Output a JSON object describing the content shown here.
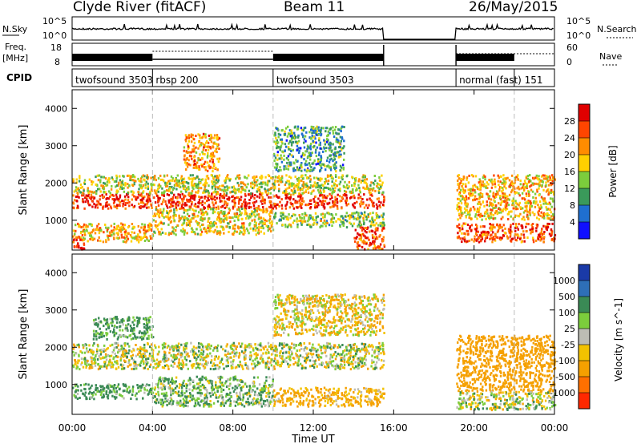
{
  "header": {
    "station": "Clyde River (fitACF)",
    "beam": "Beam 11",
    "date": "26/May/2015"
  },
  "strips": {
    "nsky_label": "N.Sky",
    "nsky_ticks": [
      "10^5",
      "10^0"
    ],
    "nsearch_label": "N.Search",
    "nsearch_ticks": [
      "10^5",
      "10^0"
    ],
    "freq_label": "Freq.",
    "freq_unit": "[MHz]",
    "freq_ticks": [
      "18",
      "8"
    ],
    "nave_label": "Nave",
    "nave_ticks": [
      "60",
      "0"
    ],
    "cpid_label": "CPID"
  },
  "cpid_segments": [
    {
      "label": "twofsound 3503",
      "start_hour": 0,
      "end_hour": 4
    },
    {
      "label": "rbsp 200",
      "start_hour": 4,
      "end_hour": 10
    },
    {
      "label": "twofsound 3503",
      "start_hour": 10,
      "end_hour": 15.5
    },
    {
      "label": "normal (fast) 151",
      "start_hour": 19.1,
      "end_hour": 22
    }
  ],
  "power_colorbar": {
    "title": "Power [dB]",
    "ticks": [
      "28",
      "24",
      "20",
      "16",
      "12",
      "8",
      "4"
    ],
    "colors": [
      "#e00000",
      "#ff4500",
      "#ff8c00",
      "#ffd000",
      "#7ccd3c",
      "#3a9a5a",
      "#1f6fd0",
      "#1010ff"
    ]
  },
  "velocity_colorbar": {
    "title": "Velocity [m s^-1]",
    "ticks": [
      "1000",
      "500",
      "100",
      "25",
      "-25",
      "-100",
      "-500",
      "-1000"
    ],
    "colors": [
      "#1a3aa8",
      "#2e6fb8",
      "#3a8a55",
      "#7ccd3c",
      "#bdbdb4",
      "#f2c200",
      "#f5a000",
      "#ff7000",
      "#ff2800"
    ]
  },
  "chart_data": [
    {
      "type": "heatmap",
      "panel": "power",
      "ylabel": "Slant Range [km]",
      "xlabel": "",
      "xlim": [
        0,
        24
      ],
      "ylim": [
        200,
        4500
      ],
      "yticks": [
        1000,
        2000,
        3000,
        4000
      ],
      "xticks": [
        0,
        4,
        8,
        12,
        16,
        20,
        24
      ],
      "data_gap_hours": [
        15.5,
        19.1
      ],
      "echo_bands": [
        {
          "start_hour": 0,
          "end_hour": 15.5,
          "range_km": [
            1300,
            1700
          ],
          "value_db": 26
        },
        {
          "start_hour": 0,
          "end_hour": 15.5,
          "range_km": [
            1700,
            2200
          ],
          "value_db": 14
        },
        {
          "start_hour": 0,
          "end_hour": 4,
          "range_km": [
            400,
            900
          ],
          "value_db": 18
        },
        {
          "start_hour": 4,
          "end_hour": 10,
          "range_km": [
            600,
            1300
          ],
          "value_db": 16
        },
        {
          "start_hour": 10,
          "end_hour": 15.5,
          "range_km": [
            800,
            1200
          ],
          "value_db": 12
        },
        {
          "start_hour": 10,
          "end_hour": 13.5,
          "range_km": [
            2300,
            3500
          ],
          "value_db": 8
        },
        {
          "start_hour": 5.5,
          "end_hour": 7.3,
          "range_km": [
            2300,
            3300
          ],
          "value_db": 20
        },
        {
          "start_hour": 14,
          "end_hour": 15.5,
          "range_km": [
            200,
            800
          ],
          "value_db": 24
        },
        {
          "start_hour": 0,
          "end_hour": 0.6,
          "range_km": [
            200,
            500
          ],
          "value_db": 28
        },
        {
          "start_hour": 19.1,
          "end_hour": 24,
          "range_km": [
            400,
            900
          ],
          "value_db": 24
        },
        {
          "start_hour": 19.1,
          "end_hour": 24,
          "range_km": [
            1000,
            2200
          ],
          "value_db": 18
        }
      ]
    },
    {
      "type": "heatmap",
      "panel": "velocity",
      "ylabel": "Slant Range [km]",
      "xlabel": "Time UT",
      "xlim": [
        0,
        24
      ],
      "ylim": [
        200,
        4500
      ],
      "yticks": [
        1000,
        2000,
        3000,
        4000
      ],
      "xticks": [
        0,
        4,
        8,
        12,
        16,
        20,
        24
      ],
      "xtick_labels": [
        "00:00",
        "04:00",
        "08:00",
        "12:00",
        "16:00",
        "20:00",
        "00:00"
      ],
      "data_gap_hours": [
        15.5,
        19.1
      ],
      "echo_bands": [
        {
          "start_hour": 0,
          "end_hour": 15.5,
          "range_km": [
            1400,
            2100
          ],
          "value_ms": 0
        },
        {
          "start_hour": 0,
          "end_hour": 4,
          "range_km": [
            600,
            1000
          ],
          "value_ms": 150
        },
        {
          "start_hour": 4,
          "end_hour": 10,
          "range_km": [
            400,
            1200
          ],
          "value_ms": 80
        },
        {
          "start_hour": 10,
          "end_hour": 15.5,
          "range_km": [
            400,
            900
          ],
          "value_ms": -150
        },
        {
          "start_hour": 10,
          "end_hour": 15.5,
          "range_km": [
            2300,
            3400
          ],
          "value_ms": -60
        },
        {
          "start_hour": 1,
          "end_hour": 4,
          "range_km": [
            2200,
            2800
          ],
          "value_ms": 150
        },
        {
          "start_hour": 19.1,
          "end_hour": 24,
          "range_km": [
            800,
            2300
          ],
          "value_ms": -300
        },
        {
          "start_hour": 19.1,
          "end_hour": 24,
          "range_km": [
            300,
            800
          ],
          "value_ms": 0
        }
      ]
    }
  ]
}
